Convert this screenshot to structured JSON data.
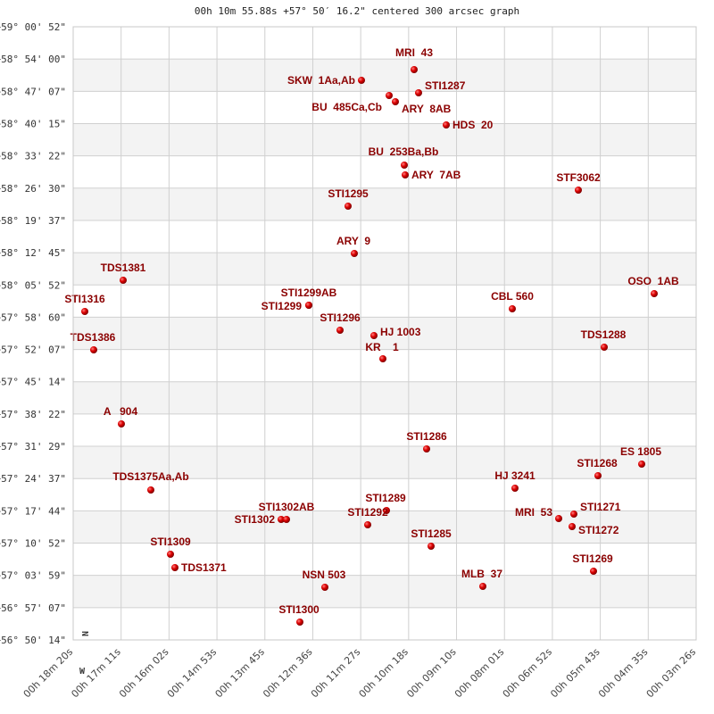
{
  "chart_data": {
    "type": "scatter",
    "title": "00h 10m 55.88s +57° 50′ 16.2\" centered 300 arcsec graph",
    "y_ticks": [
      "+59° 00' 52\"",
      "+58° 54' 00\"",
      "+58° 47' 07\"",
      "+58° 40' 15\"",
      "+58° 33' 22\"",
      "+58° 26' 30\"",
      "+58° 19' 37\"",
      "+58° 12' 45\"",
      "+58° 05' 52\"",
      "+57° 58' 60\"",
      "+57° 52' 07\"",
      "+57° 45' 14\"",
      "+57° 38' 22\"",
      "+57° 31' 29\"",
      "+57° 24' 37\"",
      "+57° 17' 44\"",
      "+57° 10' 52\"",
      "+57° 03' 59\"",
      "+56° 57' 07\"",
      "+56° 50' 14\""
    ],
    "x_ticks": [
      "00h 18m 20s",
      "00h 17m 11s",
      "00h 16m 02s",
      "00h 14m 53s",
      "00h 13m 45s",
      "00h 12m 36s",
      "00h 11m 27s",
      "00h 10m 18s",
      "00h 09m 10s",
      "00h 08m 01s",
      "00h 06m 52s",
      "00h 05m 43s",
      "00h 04m 35s",
      "00h 03m 26s"
    ],
    "north_label": "N",
    "west_label": "W",
    "grid": true,
    "marker_color": "#dd0000",
    "label_color": "#8b0000",
    "stars": [
      "MRI  43",
      "SKW  1Aa,Ab",
      "BU  485Ca,Cb",
      "STI1287",
      "ARY  8AB",
      "HDS  20",
      "BU  253Ba,Bb",
      "ARY  7AB",
      "STF3062",
      "STI1295",
      "ARY  9",
      "TDS1381",
      "OSO  1AB",
      "STI1316",
      "STI1299AB",
      "STI1299",
      "CBL 560",
      "STI1296",
      "HJ 1003",
      "TDS1386",
      "TDS1288",
      "KR    1",
      "A   904",
      "STI1286",
      "ES 1805",
      "TDS1375Aa,Ab",
      "STI1268",
      "HJ 3241",
      "STI1289",
      "STI1302",
      "STI1302AB",
      "STI1271",
      "MRI  53",
      "STI1272",
      "STI1292",
      "STI1285",
      "STI1309",
      "TDS1371",
      "STI1269",
      "NSN 503",
      "MLB  37",
      "STI1300"
    ]
  }
}
